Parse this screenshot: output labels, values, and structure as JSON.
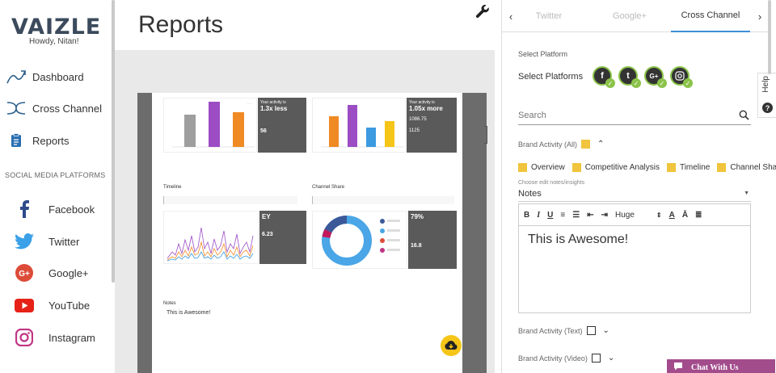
{
  "sidebar": {
    "logo": "VAIZLE",
    "greeting": "Howdy, Nitan!",
    "nav": [
      {
        "label": "Dashboard",
        "icon": "chart-line-icon"
      },
      {
        "label": "Cross Channel",
        "icon": "crossing-arrows-icon"
      },
      {
        "label": "Reports",
        "icon": "clipboard-icon"
      }
    ],
    "section_title": "SOCIAL MEDIA PLATFORMS",
    "platforms": [
      {
        "label": "Facebook",
        "icon": "facebook-icon",
        "color": "#3b5998"
      },
      {
        "label": "Twitter",
        "icon": "twitter-icon",
        "color": "#1da1f2"
      },
      {
        "label": "Google+",
        "icon": "google-plus-icon",
        "color": "#dd4b39"
      },
      {
        "label": "YouTube",
        "icon": "youtube-icon",
        "color": "#e62117"
      },
      {
        "label": "Instagram",
        "icon": "instagram-icon",
        "color": "#c13584"
      }
    ]
  },
  "main": {
    "title": "Reports",
    "report": {
      "card1": {
        "big": "1.3x less",
        "line1": "Your activity is",
        "value": "56"
      },
      "card2": {
        "big": "1.05x more",
        "line1": "Your activity is",
        "avg": "1086.75",
        "value": "1125"
      },
      "timeline_label": "Timeline",
      "channel_share_label": "Channel Share",
      "timeline_big": "EY",
      "timeline_value": "6.23",
      "share_big": "79%",
      "share_value": "16.8",
      "notes_label": "Notes",
      "notes_text": "This is Awesome!"
    }
  },
  "panel": {
    "tabs": [
      "Twitter",
      "Google+",
      "Cross Channel"
    ],
    "active_tab": "Cross Channel",
    "select_platform_label": "Select Platform",
    "select_platforms_label": "Select Platforms",
    "platform_icons": [
      "f",
      "t",
      "G+",
      "ig"
    ],
    "search_placeholder": "Search",
    "brand_activity_all": "Brand Activity (All)",
    "options": [
      "Overview",
      "Competitive Analysis",
      "Timeline",
      "Channel Share"
    ],
    "choose_notes": "Choose edit notes/insights",
    "notes_select": "Notes",
    "toolbar": {
      "bold": "B",
      "italic": "I",
      "underline": "U",
      "size": "Huge"
    },
    "editor_text": "This is Awesome!",
    "brand_activity_text": "Brand Activity (Text)",
    "brand_activity_video": "Brand Activity (Video)",
    "chat": "Chat With Us",
    "help": "Help"
  },
  "colors": {
    "accent": "#3c8fd6",
    "check": "#f0c43c",
    "green": "#8bc34a",
    "chat": "#a24c8c"
  }
}
